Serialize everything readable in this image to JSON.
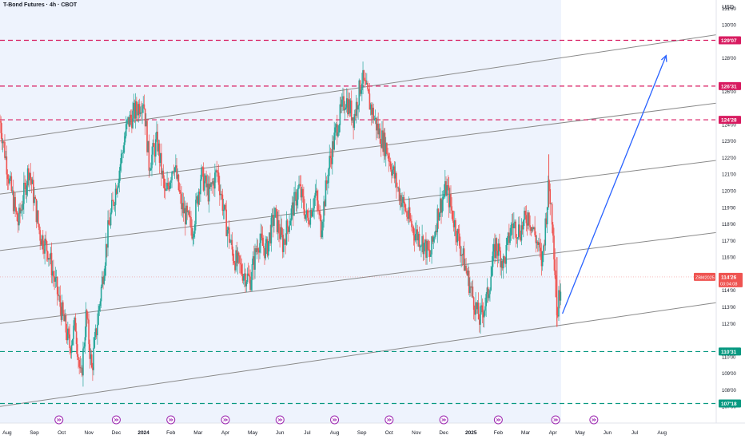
{
  "header": {
    "title": "T-Bond Futures · 4h · CBOT",
    "currency": "USD"
  },
  "colors": {
    "up": "#26a69a",
    "down": "#ef5350",
    "resistance": "#d81b60",
    "support": "#089981",
    "channel": "#8a8a8a",
    "arrow": "#2962ff",
    "shade": "#eef3fd",
    "event": "#9c27b0"
  },
  "price_label": {
    "symbol": "ZBM2025",
    "price": "114'26",
    "countdown": "03:04:08"
  },
  "chart_data": {
    "type": "candlestick",
    "title": "T-Bond Futures · 4h · CBOT",
    "y_unit": "USD",
    "ylim": [
      106,
      131.5
    ],
    "y_ticks": [
      {
        "v": 107,
        "label": "107'00"
      },
      {
        "v": 108,
        "label": "108'00"
      },
      {
        "v": 109,
        "label": "109'00"
      },
      {
        "v": 110,
        "label": "110'00"
      },
      {
        "v": 112,
        "label": "112'00"
      },
      {
        "v": 113,
        "label": "113'00"
      },
      {
        "v": 114,
        "label": "114'00"
      },
      {
        "v": 116,
        "label": "116'00"
      },
      {
        "v": 117,
        "label": "117'00"
      },
      {
        "v": 118,
        "label": "118'00"
      },
      {
        "v": 119,
        "label": "119'00"
      },
      {
        "v": 120,
        "label": "120'00"
      },
      {
        "v": 121,
        "label": "121'00"
      },
      {
        "v": 122,
        "label": "122'00"
      },
      {
        "v": 123,
        "label": "123'00"
      },
      {
        "v": 124,
        "label": "124'00"
      },
      {
        "v": 126,
        "label": "126'00"
      },
      {
        "v": 128,
        "label": "128'00"
      },
      {
        "v": 130,
        "label": "130'00"
      },
      {
        "v": 131,
        "label": "131'00"
      }
    ],
    "x_ticks": [
      {
        "t": 7.5,
        "label": "Aug"
      },
      {
        "t": 8.5,
        "label": "Sep"
      },
      {
        "t": 9.5,
        "label": "Oct"
      },
      {
        "t": 10.5,
        "label": "Nov"
      },
      {
        "t": 11.5,
        "label": "Dec"
      },
      {
        "t": 12.5,
        "label": "2024",
        "bold": true
      },
      {
        "t": 13.5,
        "label": "Feb"
      },
      {
        "t": 14.5,
        "label": "Mar"
      },
      {
        "t": 15.5,
        "label": "Apr"
      },
      {
        "t": 16.5,
        "label": "May"
      },
      {
        "t": 17.5,
        "label": "Jun"
      },
      {
        "t": 18.5,
        "label": "Jul"
      },
      {
        "t": 19.5,
        "label": "Aug"
      },
      {
        "t": 20.5,
        "label": "Sep"
      },
      {
        "t": 21.5,
        "label": "Oct"
      },
      {
        "t": 22.5,
        "label": "Nov"
      },
      {
        "t": 23.5,
        "label": "Dec"
      },
      {
        "t": 24.5,
        "label": "2025",
        "bold": true
      },
      {
        "t": 25.5,
        "label": "Feb"
      },
      {
        "t": 26.5,
        "label": "Mar"
      },
      {
        "t": 27.5,
        "label": "Apr"
      },
      {
        "t": 28.5,
        "label": "May"
      },
      {
        "t": 29.5,
        "label": "Jun"
      },
      {
        "t": 30.5,
        "label": "Jul"
      },
      {
        "t": 31.5,
        "label": "Aug"
      }
    ],
    "xlim": [
      7.24,
      34.54
    ],
    "shaded_range": [
      7.24,
      27.8
    ],
    "price_path": [
      [
        7.24,
        124.2
      ],
      [
        7.6,
        120.4
      ],
      [
        7.9,
        118.0
      ],
      [
        8.3,
        121.4
      ],
      [
        8.7,
        117.4
      ],
      [
        9.0,
        116.4
      ],
      [
        9.4,
        113.4
      ],
      [
        9.8,
        110.6
      ],
      [
        10.0,
        112.0
      ],
      [
        10.2,
        108.4
      ],
      [
        10.4,
        112.6
      ],
      [
        10.6,
        109.2
      ],
      [
        10.9,
        113.4
      ],
      [
        11.2,
        117.6
      ],
      [
        11.6,
        121.2
      ],
      [
        11.9,
        124.0
      ],
      [
        12.2,
        124.8
      ],
      [
        12.5,
        125.6
      ],
      [
        12.7,
        121.6
      ],
      [
        13.0,
        123.0
      ],
      [
        13.3,
        119.6
      ],
      [
        13.6,
        121.8
      ],
      [
        13.9,
        119.0
      ],
      [
        14.3,
        117.6
      ],
      [
        14.6,
        121.0
      ],
      [
        14.9,
        119.8
      ],
      [
        15.2,
        121.2
      ],
      [
        15.5,
        118.2
      ],
      [
        15.8,
        116.0
      ],
      [
        16.1,
        115.2
      ],
      [
        16.4,
        114.6
      ],
      [
        16.7,
        117.0
      ],
      [
        17.0,
        116.4
      ],
      [
        17.3,
        118.6
      ],
      [
        17.6,
        116.8
      ],
      [
        17.9,
        118.6
      ],
      [
        18.2,
        120.2
      ],
      [
        18.5,
        118.2
      ],
      [
        18.8,
        119.8
      ],
      [
        19.0,
        117.8
      ],
      [
        19.3,
        121.6
      ],
      [
        19.6,
        124.0
      ],
      [
        19.9,
        125.6
      ],
      [
        20.2,
        124.4
      ],
      [
        20.5,
        126.8
      ],
      [
        20.8,
        125.2
      ],
      [
        21.1,
        123.6
      ],
      [
        21.4,
        122.6
      ],
      [
        21.8,
        120.2
      ],
      [
        22.1,
        118.8
      ],
      [
        22.4,
        117.6
      ],
      [
        22.7,
        117.0
      ],
      [
        23.0,
        116.0
      ],
      [
        23.3,
        118.8
      ],
      [
        23.6,
        120.2
      ],
      [
        23.9,
        118.0
      ],
      [
        24.2,
        116.0
      ],
      [
        24.5,
        114.0
      ],
      [
        24.8,
        112.2
      ],
      [
        25.1,
        113.6
      ],
      [
        25.4,
        116.8
      ],
      [
        25.7,
        115.6
      ],
      [
        26.0,
        118.0
      ],
      [
        26.3,
        117.6
      ],
      [
        26.6,
        118.6
      ],
      [
        26.9,
        117.0
      ],
      [
        27.1,
        115.6
      ],
      [
        27.35,
        120.4
      ],
      [
        27.5,
        118.0
      ],
      [
        27.65,
        112.4
      ],
      [
        27.8,
        114.8
      ]
    ],
    "horizontal_levels": [
      {
        "value": 129.07,
        "label": "129'07",
        "role": "resistance"
      },
      {
        "value": 126.31,
        "label": "126'31",
        "role": "resistance"
      },
      {
        "value": 124.28,
        "label": "124'28",
        "role": "resistance"
      },
      {
        "value": 110.31,
        "label": "110'31",
        "role": "support"
      },
      {
        "value": 107.18,
        "label": "107'18",
        "role": "support"
      }
    ],
    "channel_lines": [
      {
        "start": [
          7.24,
          107.0
        ],
        "end": [
          34.3,
          113.45
        ]
      },
      {
        "start": [
          7.24,
          112.0
        ],
        "end": [
          34.3,
          117.65
        ]
      },
      {
        "start": [
          7.24,
          116.4
        ],
        "end": [
          34.3,
          122.0
        ]
      },
      {
        "start": [
          7.24,
          119.8
        ],
        "end": [
          34.3,
          125.45
        ]
      },
      {
        "start": [
          7.24,
          123.0
        ],
        "end": [
          34.3,
          129.6
        ]
      }
    ],
    "arrow": {
      "from": [
        27.85,
        112.6
      ],
      "to": [
        31.65,
        128.15
      ]
    },
    "current_price": {
      "value": 114.81,
      "label": "114'26"
    },
    "event_markers": [
      9.4,
      11.5,
      13.5,
      15.5,
      17.5,
      19.5,
      21.5,
      23.5,
      25.5,
      27.6,
      29.0
    ]
  }
}
